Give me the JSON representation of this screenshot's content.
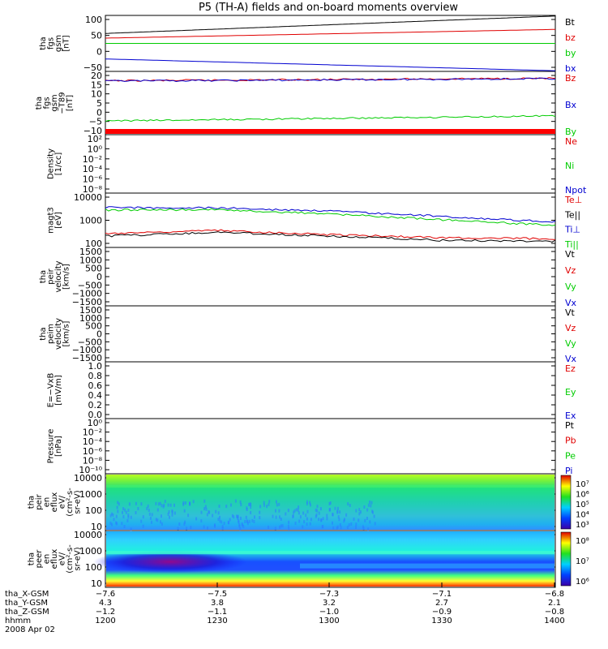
{
  "title": "P5 (TH-A) fields and on-board moments overview",
  "colors": {
    "black": "#000000",
    "red": "#e00000",
    "green": "#00cc00",
    "blue": "#0000d0"
  },
  "panels": [
    {
      "id": "fgs-gsm",
      "ylabel": [
        "tha",
        "fgs",
        "gsm",
        "[nT]"
      ],
      "ticks": [
        "100",
        "50",
        "0",
        "−50"
      ],
      "range": [
        -70,
        110
      ],
      "legend": [
        {
          "text": "Bt",
          "color": "black"
        },
        {
          "text": "bz",
          "color": "red"
        },
        {
          "text": "by",
          "color": "green"
        },
        {
          "text": "bx",
          "color": "blue"
        }
      ]
    },
    {
      "id": "fgs-gsm-t89",
      "ylabel": [
        "tha",
        "fgs",
        "gsm",
        "−T89",
        "[nT]"
      ],
      "ticks": [
        "20",
        "15",
        "10",
        "5",
        "0",
        "−5",
        "−10"
      ],
      "range": [
        -17,
        20
      ],
      "legend": [
        {
          "text": "Bz",
          "color": "red"
        },
        {
          "text": "Bx",
          "color": "blue"
        },
        {
          "text": "By",
          "color": "green"
        }
      ]
    },
    {
      "id": "density",
      "ylabel": [
        "Density",
        "[1/cc]"
      ],
      "ticks": [
        "10²",
        "10⁰",
        "10⁻²",
        "10⁻⁴",
        "10⁻⁶",
        "10⁻⁸"
      ],
      "range": [
        0,
        1
      ],
      "legend": [
        {
          "text": "Ne",
          "color": "red"
        },
        {
          "text": "Ni",
          "color": "green"
        },
        {
          "text": "Npot",
          "color": "blue"
        }
      ]
    },
    {
      "id": "temperature",
      "ylabel": [
        "magt3",
        "[eV]"
      ],
      "ticks": [
        "10000",
        "1000",
        "100"
      ],
      "range": [
        1.55,
        4.1
      ],
      "legend": [
        {
          "text": "Te⊥",
          "color": "red"
        },
        {
          "text": "Te||",
          "color": "black"
        },
        {
          "text": "Ti⊥",
          "color": "blue"
        },
        {
          "text": "Ti||",
          "color": "green"
        }
      ]
    },
    {
      "id": "peir-velocity",
      "ylabel": [
        "tha",
        "peir",
        "velocity",
        "[km/s]"
      ],
      "ticks": [
        "1500",
        "1000",
        "500",
        "0",
        "−500",
        "−1000",
        "−1500"
      ],
      "range": [
        0,
        1
      ],
      "legend": [
        {
          "text": "Vt",
          "color": "black"
        },
        {
          "text": "Vz",
          "color": "red"
        },
        {
          "text": "Vy",
          "color": "green"
        },
        {
          "text": "Vx",
          "color": "blue"
        }
      ]
    },
    {
      "id": "peim-velocity",
      "ylabel": [
        "tha",
        "peim",
        "velocity",
        "[km/s]"
      ],
      "ticks": [
        "1500",
        "1000",
        "500",
        "0",
        "−500",
        "−1000",
        "−1500"
      ],
      "range": [
        0,
        1
      ],
      "legend": [
        {
          "text": "Vt",
          "color": "black"
        },
        {
          "text": "Vz",
          "color": "red"
        },
        {
          "text": "Vy",
          "color": "green"
        },
        {
          "text": "Vx",
          "color": "blue"
        }
      ]
    },
    {
      "id": "e-field",
      "ylabel": [
        "E=−VxB",
        "[mV/m]"
      ],
      "ticks": [
        "1.0",
        "0.8",
        "0.6",
        "0.4",
        "0.2",
        "0.0"
      ],
      "range": [
        0,
        1
      ],
      "legend": [
        {
          "text": "Ez",
          "color": "red"
        },
        {
          "text": "Ey",
          "color": "green"
        },
        {
          "text": "Ex",
          "color": "blue"
        }
      ]
    },
    {
      "id": "pressure",
      "ylabel": [
        "Pressure",
        "[nPa]"
      ],
      "ticks": [
        "10⁰",
        "10⁻²",
        "10⁻⁴",
        "10⁻⁶",
        "10⁻⁸",
        "10⁻¹⁰"
      ],
      "range": [
        0,
        1
      ],
      "legend": [
        {
          "text": "Pt",
          "color": "black"
        },
        {
          "text": "Pb",
          "color": "red"
        },
        {
          "text": "Pe",
          "color": "green"
        },
        {
          "text": "Pi",
          "color": "blue"
        }
      ]
    },
    {
      "id": "peir-spectrogram",
      "ylabel": [
        "tha",
        "peir",
        "en",
        "eflux",
        "eV/",
        "(cm²-s-",
        "sr-eV)"
      ],
      "ticks": [
        "10000",
        "1000",
        "100",
        "10"
      ],
      "range": [
        0,
        1
      ],
      "colorbar": [
        "10⁷",
        "10⁶",
        "10⁵",
        "10⁴",
        "10³"
      ],
      "legend": []
    },
    {
      "id": "peer-spectrogram",
      "ylabel": [
        "tha",
        "peer",
        "en",
        "eflux",
        "eV/",
        "(cm²-s-",
        "sr-eV)"
      ],
      "ticks": [
        "10000",
        "1000",
        "100",
        "10"
      ],
      "range": [
        0,
        1
      ],
      "colorbar": [
        "10⁸",
        "10⁷",
        "10⁶"
      ],
      "legend": []
    }
  ],
  "footer": {
    "rows": [
      {
        "label": "tha_X-GSM",
        "values": [
          "−7.6",
          "−7.5",
          "−7.3",
          "−7.1",
          "−6.8"
        ]
      },
      {
        "label": "tha_Y-GSM",
        "values": [
          "4.3",
          "3.8",
          "3.2",
          "2.7",
          "2.1"
        ]
      },
      {
        "label": "tha_Z-GSM",
        "values": [
          "−1.2",
          "−1.1",
          "−1.0",
          "−0.9",
          "−0.8"
        ]
      },
      {
        "label": "hhmm",
        "values": [
          "1200",
          "1230",
          "1300",
          "1330",
          "1400"
        ]
      }
    ],
    "date": "2008 Apr 02"
  },
  "chart_data": [
    {
      "type": "line",
      "panel": "fgs-gsm",
      "x": [
        "1200",
        "1400"
      ],
      "series": [
        {
          "name": "Bt",
          "values": [
            52,
            108
          ]
        },
        {
          "name": "bz",
          "values": [
            37,
            65
          ]
        },
        {
          "name": "by",
          "values": [
            20,
            20
          ]
        },
        {
          "name": "bx",
          "values": [
            -30,
            -68
          ]
        }
      ],
      "ylim": [
        -70,
        110
      ]
    },
    {
      "type": "line",
      "panel": "fgs-gsm-t89",
      "x": [
        "1200",
        "1400"
      ],
      "series": [
        {
          "name": "Bz",
          "values": [
            14.5,
            16
          ]
        },
        {
          "name": "Bx",
          "values": [
            14.3,
            15.8
          ]
        },
        {
          "name": "By",
          "values": [
            -9,
            -6
          ]
        }
      ],
      "ylim": [
        -17,
        20
      ]
    },
    {
      "type": "line",
      "panel": "temperature",
      "x": [
        "1200",
        "1230",
        "1300",
        "1330",
        "1400"
      ],
      "series": [
        {
          "name": "Te⊥",
          "values": [
            160,
            220,
            140,
            100,
            90
          ]
        },
        {
          "name": "Te||",
          "values": [
            120,
            180,
            120,
            75,
            70
          ]
        },
        {
          "name": "Ti⊥",
          "values": [
            2600,
            2500,
            1800,
            1000,
            550
          ]
        },
        {
          "name": "Ti||",
          "values": [
            2000,
            2100,
            1300,
            700,
            380
          ]
        }
      ],
      "yscale": "log",
      "ylim": [
        35,
        12500
      ]
    },
    {
      "type": "heatmap",
      "panel": "peir-spectrogram",
      "x": [
        "1200",
        "1400"
      ],
      "yscale": "log",
      "ylim": [
        10,
        20000
      ]
    },
    {
      "type": "heatmap",
      "panel": "peer-spectrogram",
      "x": [
        "1200",
        "1400"
      ],
      "yscale": "log",
      "ylim": [
        10,
        20000
      ]
    }
  ]
}
